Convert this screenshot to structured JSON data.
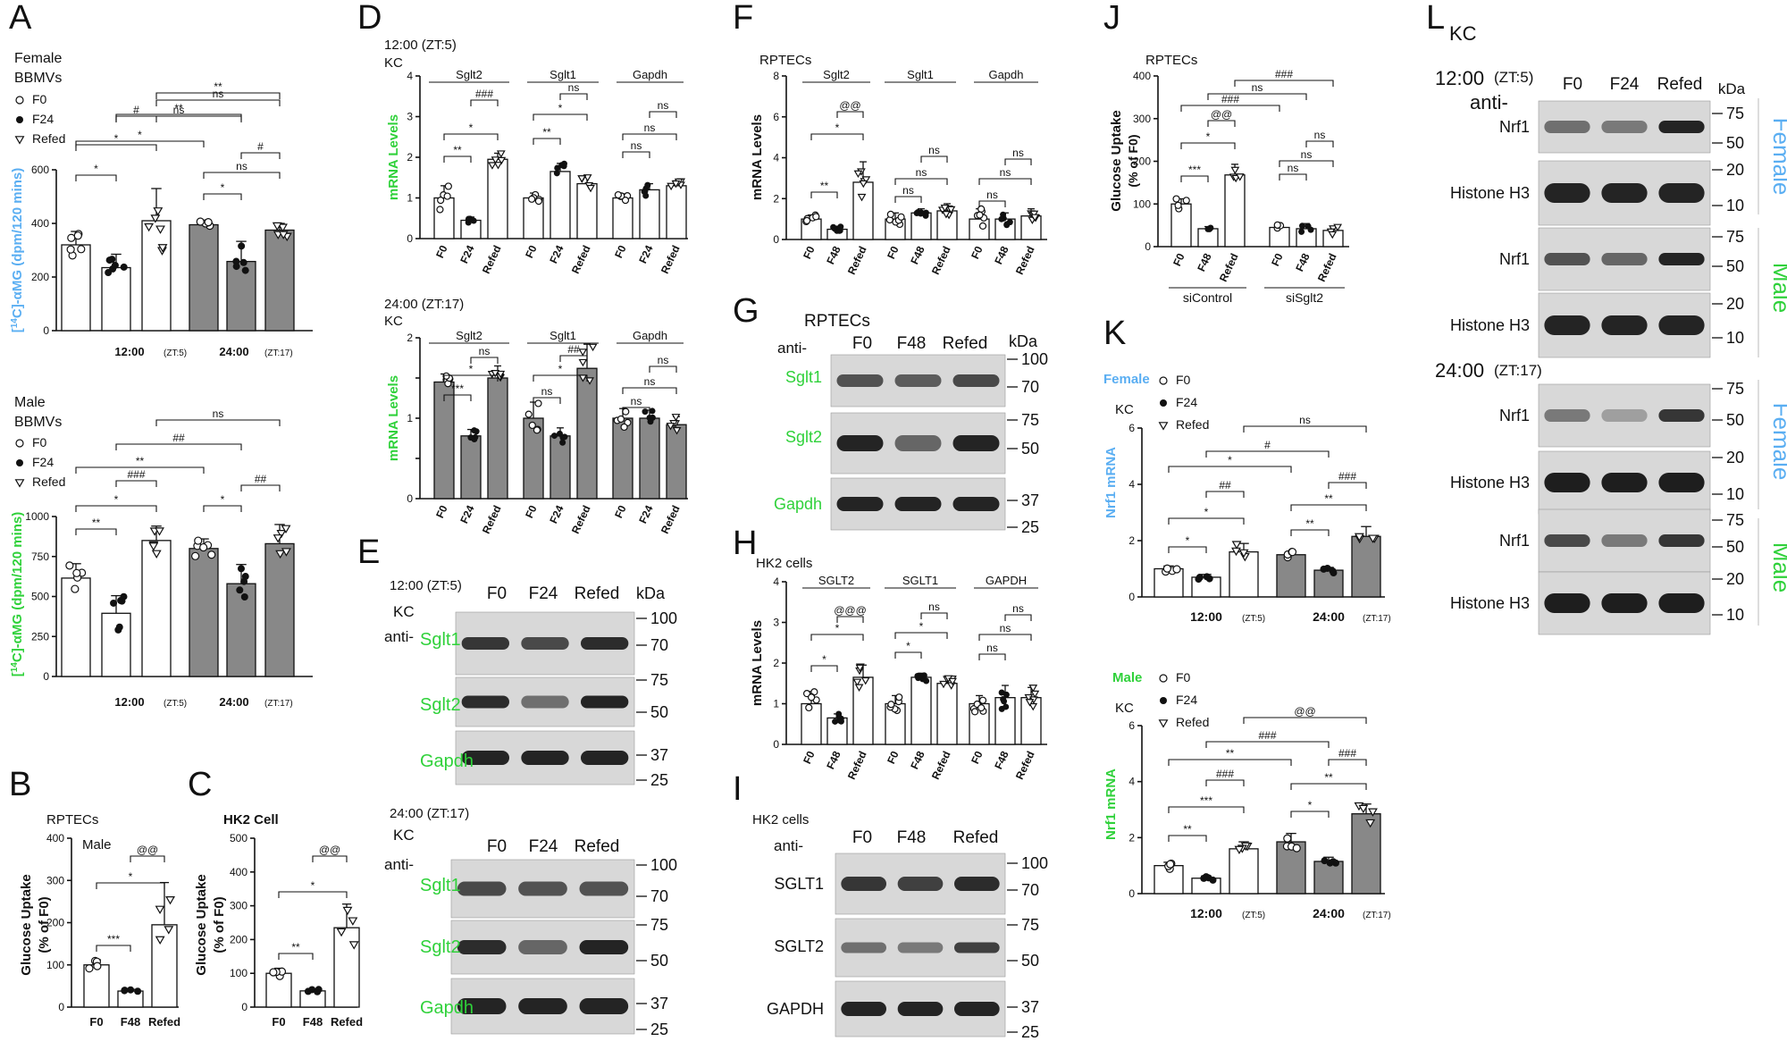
{
  "panels": {
    "A": {
      "letter": "A",
      "female": {
        "title1": "Female",
        "title2": "BBMVs",
        "ylabel_pre": "[",
        "ylabel_sup": "14",
        "ylabel_post": "C]-αMG (dpm/120 mins)",
        "color": "#5aaef2"
      },
      "male": {
        "title1": "Male",
        "title2": "BBMVs",
        "ylabel_pre": "[",
        "ylabel_sup": "14",
        "ylabel_post": "C]-αMG (dpm/120 mins)",
        "color": "#2fd13a"
      },
      "legend": [
        "F0",
        "F24",
        "Refed"
      ]
    },
    "B": {
      "letter": "B",
      "title": "RPTECs",
      "subtitle": "Male",
      "ylabel1": "Glucose Uptake",
      "ylabel2": "(% of F0)"
    },
    "C": {
      "letter": "C",
      "title": "HK2 Cell",
      "ylabel1": "Glucose Uptake",
      "ylabel2": "(% of F0)"
    },
    "D": {
      "letter": "D",
      "top_title": "12:00 (ZT:5)",
      "bottom_title": "24:00 (ZT:17)",
      "sub": "KC",
      "ylabel": "mRNA Levels"
    },
    "E": {
      "letter": "E",
      "top_title": "12:00 (ZT:5)",
      "bottom_title": "24:00 (ZT:17)",
      "sub": "KC",
      "anti": "anti-",
      "lanes": [
        "F0",
        "F24",
        "Refed"
      ],
      "kda": "kDa",
      "bands": [
        "Sglt1",
        "Sglt2",
        "Gapdh"
      ],
      "markers": [
        "100",
        "70",
        "75",
        "50",
        "37",
        "25"
      ]
    },
    "F": {
      "letter": "F",
      "title": "RPTECs",
      "ylabel": "mRNA Levels"
    },
    "G": {
      "letter": "G",
      "title": "RPTECs",
      "anti": "anti-",
      "lanes": [
        "F0",
        "F48",
        "Refed"
      ],
      "kda": "kDa",
      "bands": [
        "Sglt1",
        "Sglt2",
        "Gapdh"
      ],
      "markers": [
        "100",
        "70",
        "75",
        "50",
        "37",
        "25"
      ]
    },
    "H": {
      "letter": "H",
      "title": "HK2 cells",
      "ylabel": "mRNA Levels"
    },
    "I": {
      "letter": "I",
      "title": "HK2 cells",
      "anti": "anti-",
      "lanes": [
        "F0",
        "F48",
        "Refed"
      ],
      "kda": "kDa",
      "bands": [
        "SGLT1",
        "SGLT2",
        "GAPDH"
      ],
      "markers": [
        "100",
        "70",
        "75",
        "50",
        "37",
        "25"
      ]
    },
    "J": {
      "letter": "J",
      "title": "RPTECs",
      "ylabel1": "Glucose Uptake",
      "ylabel2": "(% of F0)",
      "groups": [
        "siControl",
        "siSglt2"
      ]
    },
    "K": {
      "letter": "K",
      "female_label": "Female",
      "male_label": "Male",
      "sub": "KC",
      "ylabel": "Nrf1 mRNA",
      "legend": [
        "F0",
        "F24",
        "Refed"
      ]
    },
    "L": {
      "letter": "L",
      "sub": "KC",
      "top_time": "12:00",
      "top_zt": "(ZT:5)",
      "bottom_time": "24:00",
      "bottom_zt": "(ZT:17)",
      "anti": "anti-",
      "lanes": [
        "F0",
        "F24",
        "Refed"
      ],
      "kda": "kDa",
      "bands": [
        "Nrf1",
        "Histone H3"
      ],
      "sexes": [
        "Female",
        "Male",
        "Female",
        "Male"
      ],
      "markers": [
        "75",
        "50",
        "20",
        "10"
      ]
    }
  },
  "time_labels": {
    "t1": "12:00",
    "z1": "(ZT:5)",
    "t2": "24:00",
    "z2": "(ZT:17)"
  },
  "sig": [
    "ns",
    "*",
    "**",
    "***",
    "#",
    "##",
    "###",
    "@@",
    "@@@"
  ],
  "chart_data": [
    {
      "id": "A-female",
      "type": "bar",
      "title": "Female BBMVs",
      "ylabel": "[14C]-αMG (dpm/120 mins)",
      "ylim": [
        0,
        600
      ],
      "yticks": [
        0,
        200,
        400,
        600
      ],
      "categories": [
        "F0",
        "F24",
        "Refed",
        "F0",
        "F24",
        "Refed"
      ],
      "groups": [
        "12:00 (ZT:5)",
        "24:00 (ZT:17)"
      ],
      "values": [
        320,
        235,
        410,
        395,
        258,
        375
      ]
    },
    {
      "id": "A-male",
      "type": "bar",
      "title": "Male BBMVs",
      "ylabel": "[14C]-αMG (dpm/120 mins)",
      "ylim": [
        0,
        1000
      ],
      "yticks": [
        0,
        250,
        500,
        750,
        1000
      ],
      "categories": [
        "F0",
        "F24",
        "Refed",
        "F0",
        "F24",
        "Refed"
      ],
      "groups": [
        "12:00 (ZT:5)",
        "24:00 (ZT:17)"
      ],
      "values": [
        615,
        395,
        850,
        800,
        580,
        830
      ]
    },
    {
      "id": "B",
      "type": "bar",
      "title": "RPTECs",
      "ylabel": "Glucose Uptake (% of F0)",
      "ylim": [
        0,
        400
      ],
      "yticks": [
        0,
        100,
        200,
        300,
        400
      ],
      "categories": [
        "F0",
        "F48",
        "Refed"
      ],
      "values": [
        100,
        38,
        195
      ]
    },
    {
      "id": "C",
      "type": "bar",
      "title": "HK2 Cell",
      "ylabel": "Glucose Uptake (% of F0)",
      "ylim": [
        0,
        500
      ],
      "yticks": [
        0,
        100,
        200,
        300,
        400,
        500
      ],
      "categories": [
        "F0",
        "F48",
        "Refed"
      ],
      "values": [
        100,
        48,
        235
      ]
    },
    {
      "id": "D-top",
      "type": "bar",
      "title": "12:00 (ZT:5)",
      "ylabel": "mRNA Levels",
      "ylim": [
        0,
        4
      ],
      "yticks": [
        0,
        1,
        2,
        3,
        4
      ],
      "categories": [
        "F0",
        "F24",
        "Refed",
        "F0",
        "F24",
        "Refed",
        "F0",
        "F24",
        "Refed"
      ],
      "groups": [
        "Sglt2",
        "Sglt1",
        "Gapdh"
      ],
      "values": [
        1.0,
        0.45,
        1.95,
        1.0,
        1.65,
        1.35,
        1.0,
        1.2,
        1.3
      ]
    },
    {
      "id": "D-bottom",
      "type": "bar",
      "title": "24:00 (ZT:17)",
      "ylabel": "mRNA Levels",
      "ylim": [
        0,
        2
      ],
      "yticks": [
        0,
        0.5,
        1,
        1.5,
        2
      ],
      "ytick_labels": [
        "0",
        "",
        "1",
        "",
        "2"
      ],
      "categories": [
        "F0",
        "F24",
        "Refed",
        "F0",
        "F24",
        "Refed",
        "F0",
        "F24",
        "Refed"
      ],
      "groups": [
        "Sglt2",
        "Sglt1",
        "Gapdh"
      ],
      "values": [
        1.45,
        0.78,
        1.5,
        1.0,
        0.78,
        1.62,
        1.0,
        1.0,
        0.92
      ]
    },
    {
      "id": "F",
      "type": "bar",
      "title": "RPTECs",
      "ylabel": "mRNA Levels",
      "ylim": [
        0,
        8
      ],
      "yticks": [
        0,
        2,
        4,
        6,
        8
      ],
      "categories": [
        "F0",
        "F48",
        "Refed",
        "F0",
        "F48",
        "Refed",
        "F0",
        "F48",
        "Refed"
      ],
      "groups": [
        "Sglt2",
        "Sglt1",
        "Gapdh"
      ],
      "values": [
        1.0,
        0.5,
        2.8,
        1.0,
        1.3,
        1.4,
        1.0,
        1.0,
        1.15
      ]
    },
    {
      "id": "H",
      "type": "bar",
      "title": "HK2 cells",
      "ylabel": "mRNA Levels",
      "ylim": [
        0,
        4
      ],
      "yticks": [
        0,
        1,
        2,
        3,
        4
      ],
      "categories": [
        "F0",
        "F48",
        "Refed",
        "F0",
        "F48",
        "Refed",
        "F0",
        "F48",
        "Refed"
      ],
      "groups": [
        "SGLT2",
        "SGLT1",
        "GAPDH"
      ],
      "values": [
        1.0,
        0.65,
        1.65,
        1.0,
        1.65,
        1.5,
        1.0,
        1.15,
        1.15
      ]
    },
    {
      "id": "J",
      "type": "bar",
      "title": "RPTECs",
      "ylabel": "Glucose Uptake (% of F0)",
      "ylim": [
        0,
        400
      ],
      "yticks": [
        0,
        100,
        200,
        300,
        400
      ],
      "categories": [
        "F0",
        "F48",
        "Refed",
        "F0",
        "F48",
        "Refed"
      ],
      "groups": [
        "siControl",
        "siSglt2"
      ],
      "values": [
        100,
        42,
        168,
        45,
        42,
        38
      ]
    },
    {
      "id": "K-female",
      "type": "bar",
      "title": "Female",
      "ylabel": "Nrf1 mRNA",
      "ylim": [
        0,
        6
      ],
      "yticks": [
        0,
        2,
        4,
        6
      ],
      "categories": [
        "F0",
        "F24",
        "Refed",
        "F0",
        "F24",
        "Refed"
      ],
      "groups": [
        "12:00 (ZT:5)",
        "24:00 (ZT:17)"
      ],
      "values": [
        1.0,
        0.7,
        1.6,
        1.5,
        0.95,
        2.15
      ]
    },
    {
      "id": "K-male",
      "type": "bar",
      "title": "Male",
      "ylabel": "Nrf1 mRNA",
      "ylim": [
        0,
        6
      ],
      "yticks": [
        0,
        2,
        4,
        6
      ],
      "categories": [
        "F0",
        "F24",
        "Refed",
        "F0",
        "F24",
        "Refed"
      ],
      "groups": [
        "12:00 (ZT:5)",
        "24:00 (ZT:17)"
      ],
      "values": [
        1.0,
        0.55,
        1.6,
        1.85,
        1.15,
        2.85
      ]
    }
  ]
}
